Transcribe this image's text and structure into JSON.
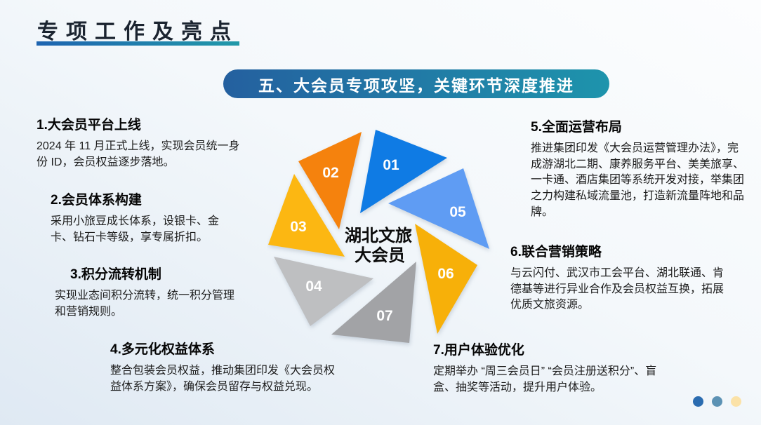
{
  "slide": {
    "title": "专项工作及亮点",
    "banner": "五、大会员专项攻坚，关键环节深度推进",
    "accent": {
      "underline_from": "#1e64b0",
      "underline_to": "#2199a9",
      "banner_from": "#24609f",
      "banner_to": "#1e94ac",
      "title_color": "#1b2430"
    }
  },
  "center": {
    "line1": "湖北文旅",
    "line2": "大会员"
  },
  "pinwheel": {
    "blades": [
      {
        "num": "01",
        "color": "#0f7be4"
      },
      {
        "num": "02",
        "color": "#f5820d"
      },
      {
        "num": "03",
        "color": "#fcb712"
      },
      {
        "num": "04",
        "color": "#bebfc1"
      },
      {
        "num": "05",
        "color": "#5f9cf3"
      },
      {
        "num": "06",
        "color": "#f7b009"
      },
      {
        "num": "07",
        "color": "#a2a3a6"
      }
    ]
  },
  "blocks": [
    {
      "heading": "1.大会员平台上线",
      "body": "2024 年 11 月正式上线，实现会员统一身份 ID，会员权益逐步落地。"
    },
    {
      "heading": "2.会员体系构建",
      "body": "采用小旅豆成长体系，设银卡、金卡、钻石卡等级，享专属折扣。"
    },
    {
      "heading": "3.积分流转机制",
      "body": "实现业态间积分流转，统一积分管理和营销规则。"
    },
    {
      "heading": "4.多元化权益体系",
      "body": "整合包装会员权益，推动集团印发《大会员权益体系方案》，确保会员留存与权益兑现。"
    },
    {
      "heading": "5.全面运营布局",
      "body": "推进集团印发《大会员运营管理办法》，完成游湖北二期、康养服务平台、美美旅享、一卡通、酒店集团等系统开发对接，举集团之力构建私域流量池，打造新流量阵地和品牌。"
    },
    {
      "heading": "6.联合营销策略",
      "body": "与云闪付、武汉市工会平台、湖北联通、肯德基等进行异业合作及会员权益互换，拓展优质文旅资源。"
    },
    {
      "heading": "7.用户体验优化",
      "body": "定期举办 “周三会员日” “会员注册送积分”、盲盒、抽奖等活动，提升用户体验。"
    }
  ],
  "pagination_dots": [
    "#2b6cb0",
    "#5c92b4",
    "#fbe2a7"
  ]
}
